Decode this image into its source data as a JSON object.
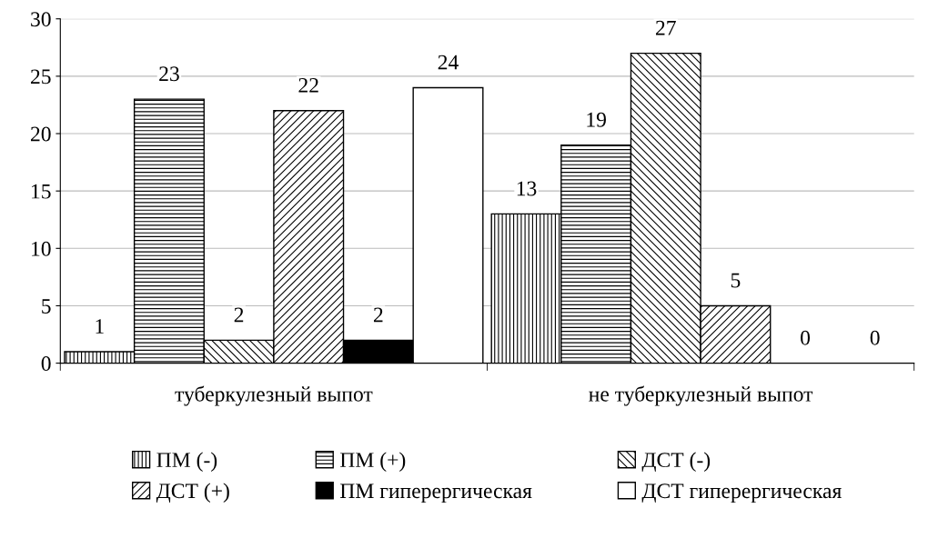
{
  "chart_data": {
    "type": "bar",
    "categories": [
      "туберкулезный выпот",
      "не туберкулезный выпот"
    ],
    "series": [
      {
        "name": "ПМ (-)",
        "color": "#000000",
        "values": [
          1,
          13
        ]
      },
      {
        "name": "ПМ (+)",
        "color": "#000000",
        "values": [
          23,
          19
        ]
      },
      {
        "name": "ДСТ (-)",
        "color": "#000000",
        "values": [
          2,
          27
        ]
      },
      {
        "name": "ДСТ (+)",
        "color": "#000000",
        "values": [
          22,
          5
        ]
      },
      {
        "name": "ПМ гиперергическая",
        "color": "#000000",
        "values": [
          2,
          0
        ]
      },
      {
        "name": "ДСТ гиперергическая",
        "color": "#000000",
        "values": [
          24,
          0
        ]
      }
    ],
    "ylim": [
      0,
      30
    ],
    "yticks": [
      0,
      5,
      10,
      15,
      20,
      25,
      30
    ],
    "grid": "y",
    "legend": "bottom",
    "data_labels": true
  }
}
